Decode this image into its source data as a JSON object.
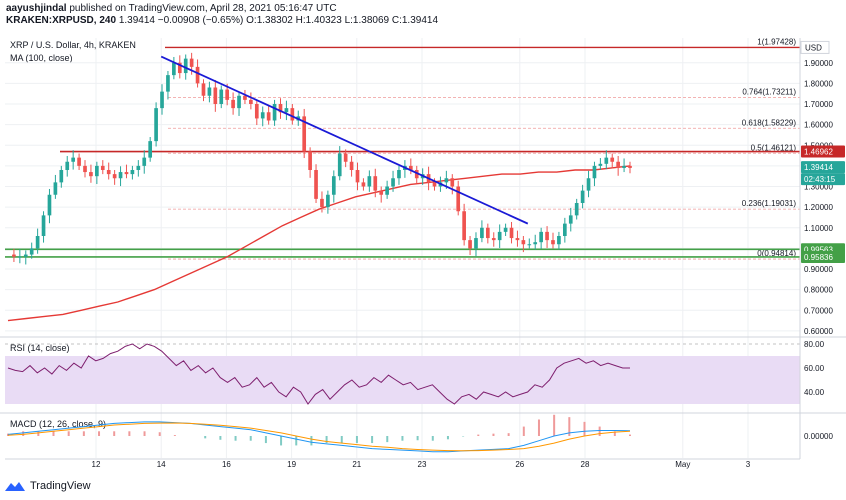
{
  "header": {
    "publisher": "aayushjindal",
    "published_text": "published on TradingView.com, April 28, 2021 05:16:47 UTC",
    "symbol": "KRAKEN:XRPUSD, 240",
    "change": "1.39414 −0.00908 (−0.65%)",
    "o_label": "O:",
    "o_value": "1.38302",
    "h_label": "H:",
    "h_value": "1.40323",
    "l_label": "L:",
    "l_value": "1.38069",
    "c_label": "C:",
    "c_value": "1.39414"
  },
  "legend": {
    "pair": "XRP / U.S. Dollar, 4h, KRAKEN",
    "ma": "MA (100, close)",
    "rsi": "RSI (14, close)",
    "macd": "MACD (12, 26, close, 9)"
  },
  "currency_badge": "USD",
  "footer": {
    "brand": "TradingView"
  },
  "colors": {
    "up": "#26a69a",
    "down": "#ef5350",
    "ma": "#e53935",
    "trendline": "#1a1ad6",
    "resistance": "#c62828",
    "support": "#43a047",
    "rsi_line": "#7e1f6e",
    "rsi_band": "#e9dcf5",
    "macd": "#2196f3",
    "signal": "#ff9800"
  },
  "chart_data": [
    {
      "type": "candlestick",
      "title": "XRP / U.S. Dollar, 4h, KRAKEN",
      "ylim": [
        0.58,
        2.02
      ],
      "y_ticks": [
        "1.90000",
        "1.80000",
        "1.70000",
        "1.60000",
        "1.50000",
        "1.40000",
        "1.30000",
        "1.20000",
        "1.10000",
        "1.00000",
        "0.90000",
        "0.80000",
        "0.70000",
        "0.60000"
      ],
      "x_ticks": [
        "12",
        "14",
        "16",
        "19",
        "21",
        "23",
        "26",
        "28",
        "May",
        "3"
      ],
      "close_path": [
        0.97,
        0.96,
        0.96,
        0.97,
        1.0,
        1.06,
        1.16,
        1.26,
        1.32,
        1.38,
        1.42,
        1.44,
        1.4,
        1.37,
        1.35,
        1.4,
        1.38,
        1.36,
        1.34,
        1.37,
        1.36,
        1.38,
        1.4,
        1.44,
        1.52,
        1.68,
        1.76,
        1.84,
        1.9,
        1.85,
        1.92,
        1.88,
        1.8,
        1.74,
        1.78,
        1.7,
        1.77,
        1.72,
        1.68,
        1.74,
        1.72,
        1.7,
        1.63,
        1.66,
        1.62,
        1.7,
        1.66,
        1.68,
        1.62,
        1.64,
        1.47,
        1.38,
        1.24,
        1.2,
        1.26,
        1.35,
        1.46,
        1.42,
        1.38,
        1.32,
        1.3,
        1.35,
        1.28,
        1.26,
        1.3,
        1.34,
        1.38,
        1.4,
        1.38,
        1.34,
        1.36,
        1.32,
        1.3,
        1.32,
        1.34,
        1.3,
        1.18,
        1.04,
        1.0,
        1.05,
        1.1,
        1.05,
        1.04,
        1.08,
        1.1,
        1.05,
        1.04,
        1.02,
        1.02,
        1.03,
        1.08,
        1.04,
        1.02,
        1.06,
        1.12,
        1.16,
        1.22,
        1.28,
        1.34,
        1.4,
        1.41,
        1.44,
        1.42,
        1.39,
        1.4,
        1.39
      ],
      "ma100_path": [
        0.65,
        0.66,
        0.67,
        0.68,
        0.7,
        0.72,
        0.74,
        0.77,
        0.8,
        0.84,
        0.88,
        0.92,
        0.96,
        1.01,
        1.06,
        1.11,
        1.15,
        1.19,
        1.22,
        1.25,
        1.27,
        1.29,
        1.31,
        1.32,
        1.33,
        1.34,
        1.35,
        1.36,
        1.36,
        1.37,
        1.37,
        1.38,
        1.38,
        1.39,
        1.4
      ],
      "last_price": "1.39414",
      "countdown": "02:43:15",
      "resistance_price": "1.46962",
      "support_prices": [
        "0.99563",
        "0.95836"
      ],
      "fib_levels": [
        {
          "label": "1(1.97428)",
          "value": 1.97428
        },
        {
          "label": "0.764(1.73211)",
          "value": 1.73211
        },
        {
          "label": "0.618(1.58229)",
          "value": 1.58229
        },
        {
          "label": "0.5(1.46121)",
          "value": 1.46121
        },
        {
          "label": "0.236(1.19031)",
          "value": 1.19031
        },
        {
          "label": "0(0.94814)",
          "value": 0.94814
        }
      ],
      "trendline": {
        "from": [
          14,
          1.93
        ],
        "to": [
          26,
          1.12
        ]
      }
    },
    {
      "type": "line",
      "title": "RSI (14, close)",
      "ylim": [
        25,
        85
      ],
      "y_ticks": [
        "80.00",
        "60.00",
        "40.00"
      ],
      "band": [
        30,
        70
      ],
      "values": [
        60,
        58,
        57,
        62,
        56,
        60,
        55,
        62,
        58,
        64,
        60,
        70,
        66,
        68,
        72,
        74,
        78,
        80,
        76,
        80,
        78,
        74,
        68,
        62,
        66,
        58,
        62,
        56,
        60,
        52,
        48,
        52,
        44,
        46,
        52,
        44,
        48,
        40,
        36,
        44,
        40,
        30,
        38,
        42,
        34,
        40,
        46,
        50,
        44,
        46,
        52,
        48,
        54,
        50,
        46,
        48,
        42,
        44,
        46,
        40,
        34,
        30,
        36,
        38,
        34,
        40,
        38,
        36,
        40,
        36,
        38,
        40,
        46,
        44,
        50,
        60,
        64,
        66,
        68,
        64,
        66,
        62,
        64,
        62,
        60,
        60
      ]
    },
    {
      "type": "line",
      "title": "MACD (12, 26, close, 9)",
      "y_ticks": [
        "0.00000"
      ],
      "ylim": [
        -0.14,
        0.14
      ],
      "series": [
        {
          "name": "MACD",
          "values": [
            0.01,
            0.02,
            0.03,
            0.04,
            0.05,
            0.06,
            0.07,
            0.08,
            0.085,
            0.09,
            0.09,
            0.085,
            0.08,
            0.07,
            0.06,
            0.05,
            0.04,
            0.02,
            0.0,
            -0.02,
            -0.04,
            -0.05,
            -0.06,
            -0.07,
            -0.08,
            -0.085,
            -0.09,
            -0.095,
            -0.1,
            -0.1,
            -0.095,
            -0.09,
            -0.085,
            -0.08,
            -0.06,
            -0.03,
            0.0,
            0.02,
            0.03,
            0.035,
            0.035,
            0.033
          ]
        },
        {
          "name": "Signal",
          "values": [
            0.005,
            0.01,
            0.02,
            0.03,
            0.04,
            0.05,
            0.06,
            0.07,
            0.075,
            0.08,
            0.082,
            0.083,
            0.08,
            0.075,
            0.068,
            0.06,
            0.05,
            0.035,
            0.02,
            0.0,
            -0.02,
            -0.035,
            -0.045,
            -0.055,
            -0.065,
            -0.072,
            -0.08,
            -0.086,
            -0.09,
            -0.093,
            -0.094,
            -0.093,
            -0.09,
            -0.086,
            -0.08,
            -0.065,
            -0.045,
            -0.02,
            0.0,
            0.015,
            0.025,
            0.03
          ]
        }
      ]
    }
  ]
}
